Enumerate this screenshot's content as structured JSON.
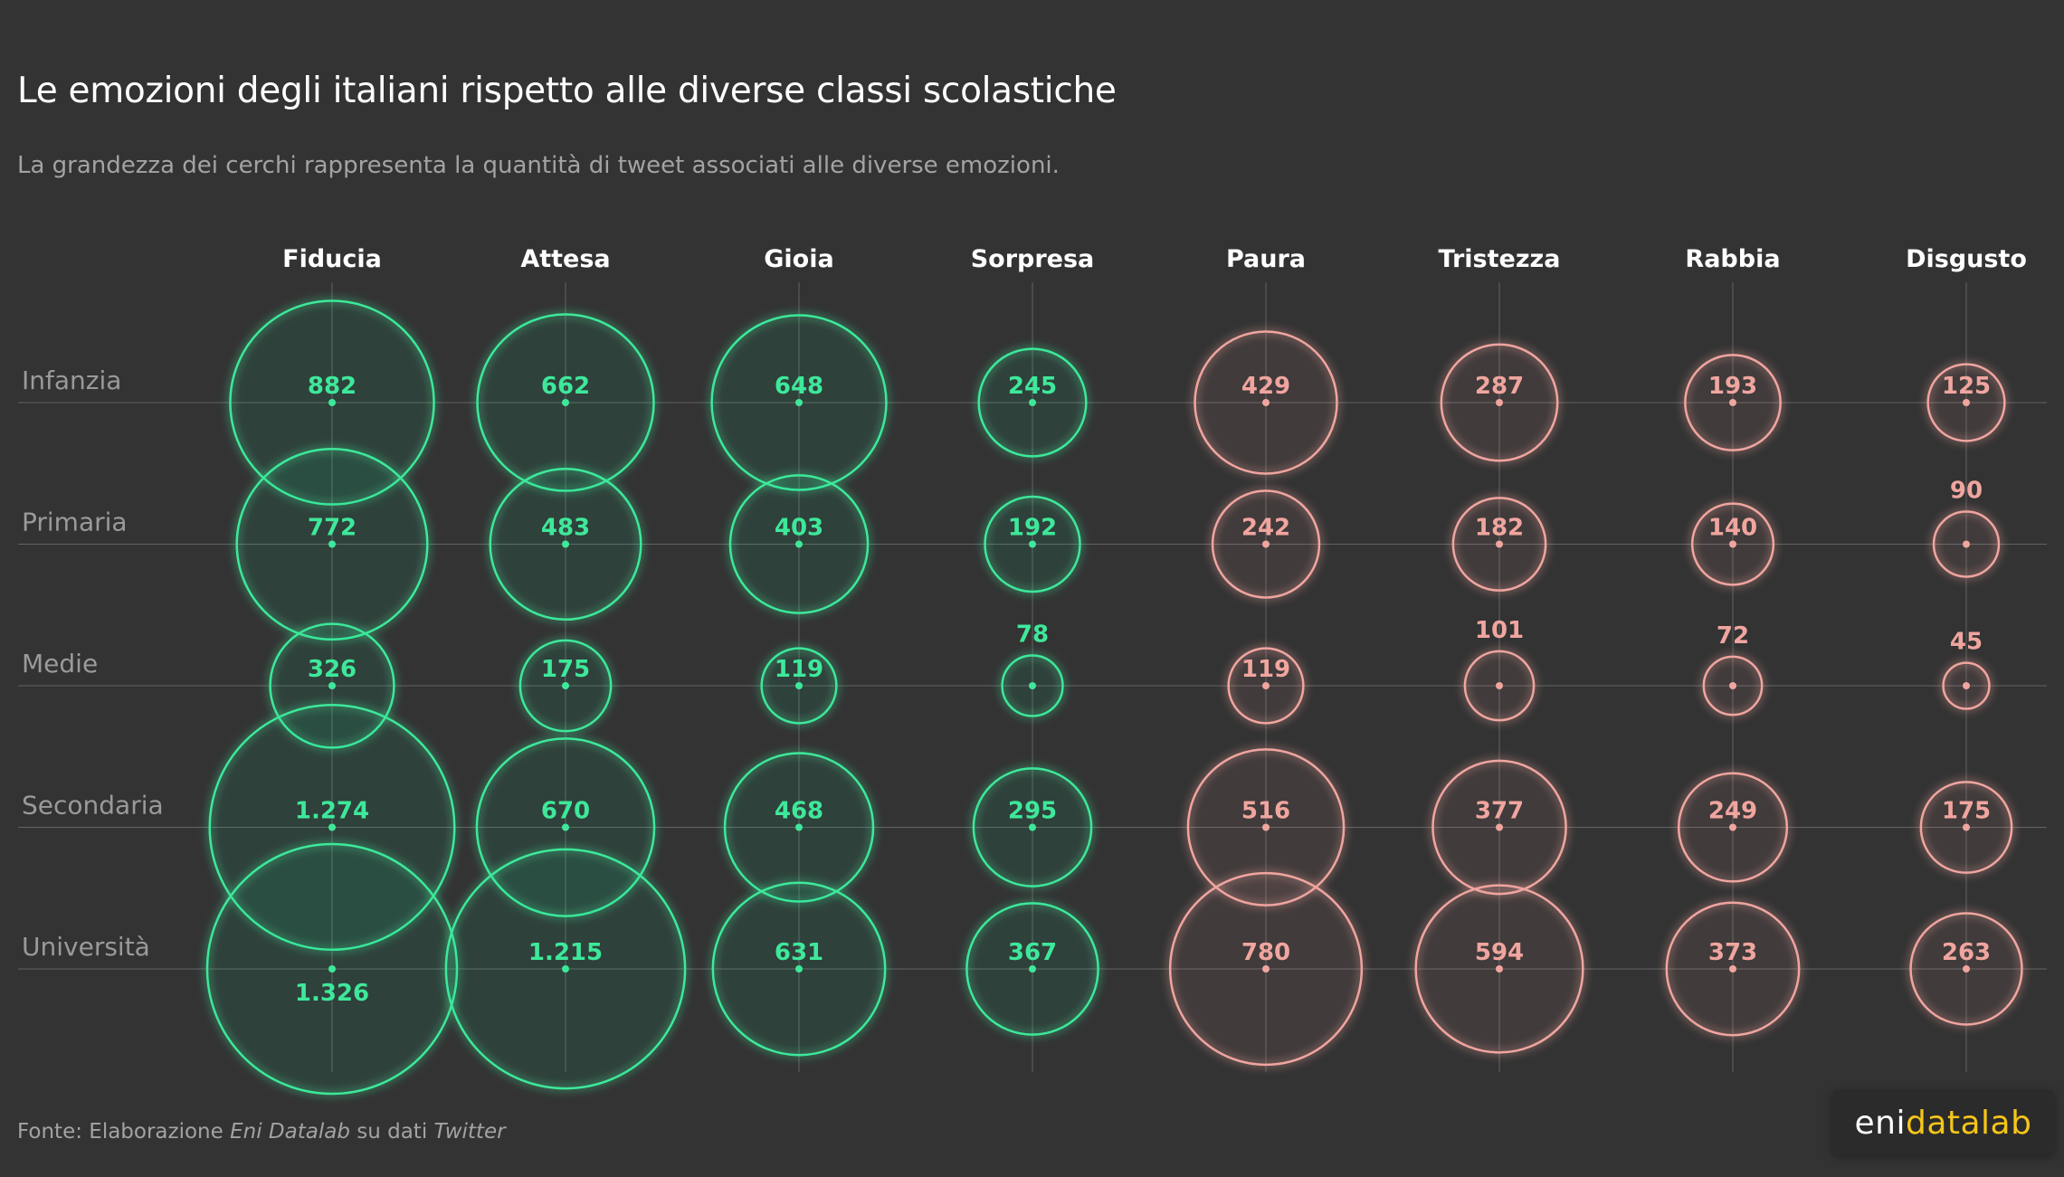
{
  "header": {
    "title": "Le emozioni degli italiani rispetto alle diverse classi scolastiche",
    "subtitle": "La grandezza dei cerchi rappresenta la quantità di tweet associati alle diverse emozioni."
  },
  "footer": {
    "prefix": "Fonte: Elaborazione ",
    "source_name": "Eni Datalab",
    "middle": " su dati ",
    "platform": "Twitter"
  },
  "logo": {
    "part1": "eni",
    "part2": "datalab"
  },
  "colors": {
    "positive": "#3ee89a",
    "negative": "#f0a59f",
    "gridline": "#8a8a8a",
    "background": "#333333"
  },
  "chart_data": {
    "type": "bubble-matrix",
    "title": "Le emozioni degli italiani rispetto alle diverse classi scolastiche",
    "subtitle": "La grandezza dei cerchi rappresenta la quantità di tweet associati alle diverse emozioni.",
    "columns": [
      "Fiducia",
      "Attesa",
      "Gioia",
      "Sorpresa",
      "Paura",
      "Tristezza",
      "Rabbia",
      "Disgusto"
    ],
    "column_sentiment": [
      "positive",
      "positive",
      "positive",
      "positive",
      "negative",
      "negative",
      "negative",
      "negative"
    ],
    "rows": [
      "Infanzia",
      "Primaria",
      "Medie",
      "Secondaria",
      "Università"
    ],
    "values": [
      [
        882,
        662,
        648,
        245,
        429,
        287,
        193,
        125
      ],
      [
        772,
        483,
        403,
        192,
        242,
        182,
        140,
        90
      ],
      [
        326,
        175,
        119,
        78,
        119,
        101,
        72,
        45
      ],
      [
        1274,
        670,
        468,
        295,
        516,
        377,
        249,
        175
      ],
      [
        1326,
        1215,
        631,
        367,
        780,
        594,
        373,
        263
      ]
    ],
    "labels": [
      [
        "882",
        "662",
        "648",
        "245",
        "429",
        "287",
        "193",
        "125"
      ],
      [
        "772",
        "483",
        "403",
        "192",
        "242",
        "182",
        "140",
        "90"
      ],
      [
        "326",
        "175",
        "119",
        "78",
        "119",
        "101",
        "72",
        "45"
      ],
      [
        "1.274",
        "670",
        "468",
        "295",
        "516",
        "377",
        "249",
        "175"
      ],
      [
        "1.326",
        "1.215",
        "631",
        "367",
        "780",
        "594",
        "373",
        "263"
      ]
    ]
  }
}
